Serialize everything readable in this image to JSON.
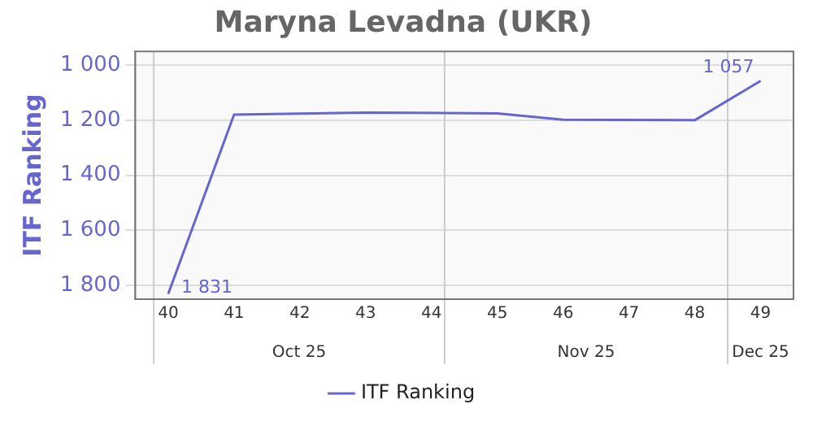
{
  "chart_data": {
    "type": "line",
    "title": "Maryna Levadna (UKR)",
    "ylabel": "ITF Ranking",
    "x": [
      40,
      41,
      43,
      45,
      46,
      48,
      49
    ],
    "series": [
      {
        "name": "ITF Ranking",
        "color": "#6666cc",
        "values": [
          1831,
          1180,
          1172,
          1175,
          1198,
          1200,
          1057
        ],
        "value_labels": [
          "1 831",
          null,
          null,
          null,
          null,
          null,
          "1 057"
        ]
      }
    ],
    "xlim": [
      39.5,
      49.5
    ],
    "xticks": [
      40,
      41,
      42,
      43,
      44,
      45,
      46,
      47,
      48,
      49
    ],
    "annotations": [
      "Oct 25",
      "Nov 25",
      "Dec 25"
    ],
    "ref_lines": [
      {
        "axis": "x",
        "value": 39.78,
        "color": "#cccccc"
      },
      {
        "axis": "x",
        "value": 44.2,
        "color": "#cccccc"
      },
      {
        "axis": "x",
        "value": 48.5,
        "color": "#cccccc"
      }
    ],
    "ylim": [
      1850,
      950
    ],
    "yticks": [
      {
        "value": 1000,
        "label": "1 000"
      },
      {
        "value": 1200,
        "label": "1 200"
      },
      {
        "value": 1400,
        "label": "1 400"
      },
      {
        "value": 1600,
        "label": "1 600"
      },
      {
        "value": 1800,
        "label": "1 800"
      }
    ],
    "grid": "y",
    "legend": "bottom",
    "marker": "none",
    "line_style": "solid"
  }
}
